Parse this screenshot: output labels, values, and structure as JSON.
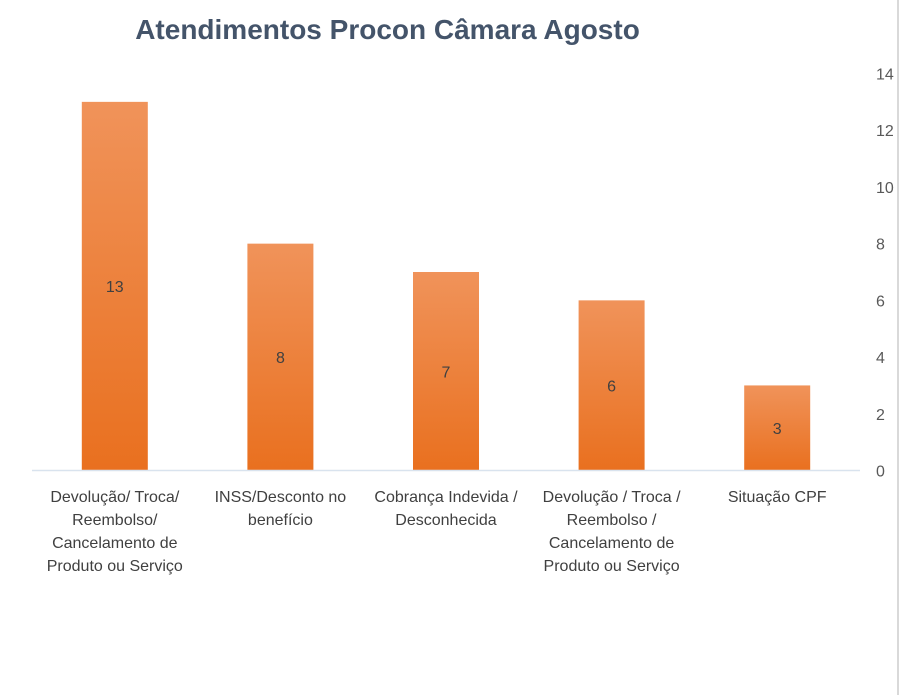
{
  "chart_data": {
    "type": "bar",
    "title": "Atendimentos Procon Câmara Agosto",
    "categories": [
      [
        "Devolução/ Troca/",
        "Reembolso/",
        "Cancelamento de",
        "Produto ou Serviço"
      ],
      [
        "INSS/Desconto no",
        "benefício"
      ],
      [
        "Cobrança Indevida /",
        "Desconhecida"
      ],
      [
        "Devolução / Troca /",
        "Reembolso /",
        "Cancelamento de",
        "Produto ou Serviço"
      ],
      [
        "Situação CPF"
      ]
    ],
    "values": [
      13,
      8,
      7,
      6,
      3
    ],
    "ylim": [
      0,
      14
    ],
    "yticks": [
      0,
      2,
      4,
      6,
      8,
      10,
      12,
      14
    ],
    "y_axis_position": "right",
    "grid": false,
    "legend": "none",
    "bar_color_top": "#F0935A",
    "bar_color_bottom": "#E9701F",
    "axis_color": "#D9E3EE"
  }
}
